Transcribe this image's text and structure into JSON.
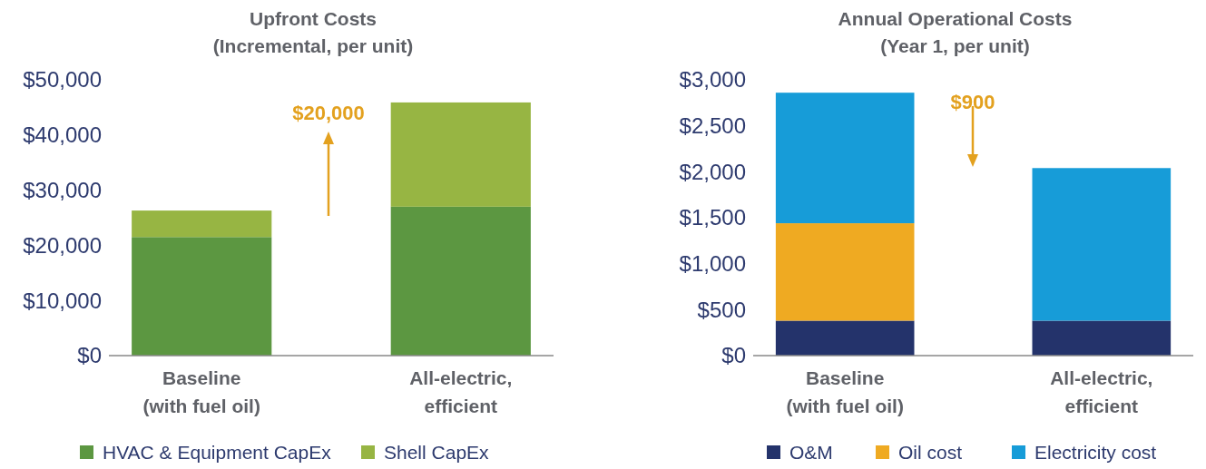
{
  "chart_data": [
    {
      "type": "bar",
      "title": "Upfront Costs\n(Incremental, per unit)",
      "categories": [
        "Baseline\n(with fuel oil)",
        "All-electric,\nefficient"
      ],
      "stacked": true,
      "series": [
        {
          "name": "HVAC & Equipment CapEx",
          "color": "#5c9741",
          "values": [
            21500,
            27000
          ]
        },
        {
          "name": "Shell CapEx",
          "color": "#97b543",
          "values": [
            4800,
            18900
          ]
        }
      ],
      "ylim": [
        0,
        50000
      ],
      "yticks": [
        {
          "value": 0,
          "label": "$0"
        },
        {
          "value": 10000,
          "label": "$10,000"
        },
        {
          "value": 20000,
          "label": "$20,000"
        },
        {
          "value": 30000,
          "label": "$30,000"
        },
        {
          "value": 40000,
          "label": "$40,000"
        },
        {
          "value": 50000,
          "label": "$50,000"
        }
      ],
      "annotations": [
        "$20,000"
      ],
      "legend": "bottom",
      "grid": false
    },
    {
      "type": "bar",
      "title": "Annual Operational Costs\n(Year 1, per unit)",
      "categories": [
        "Baseline\n(with fuel oil)",
        "All-electric,\nefficient"
      ],
      "stacked": true,
      "series": [
        {
          "name": "O&M",
          "color": "#24336b",
          "values": [
            380,
            380
          ]
        },
        {
          "name": "Oil cost",
          "color": "#efaa22",
          "values": [
            1060,
            0
          ]
        },
        {
          "name": "Electricity cost",
          "color": "#179cd8",
          "values": [
            1420,
            1660
          ]
        }
      ],
      "ylim": [
        0,
        3000
      ],
      "yticks": [
        {
          "value": 0,
          "label": "$0"
        },
        {
          "value": 500,
          "label": "$500"
        },
        {
          "value": 1000,
          "label": "$1,000"
        },
        {
          "value": 1500,
          "label": "$1,500"
        },
        {
          "value": 2000,
          "label": "$2,000"
        },
        {
          "value": 2500,
          "label": "$2,500"
        },
        {
          "value": 3000,
          "label": "$3,000"
        }
      ],
      "annotations": [
        "$900"
      ],
      "legend": "bottom",
      "grid": false
    }
  ]
}
